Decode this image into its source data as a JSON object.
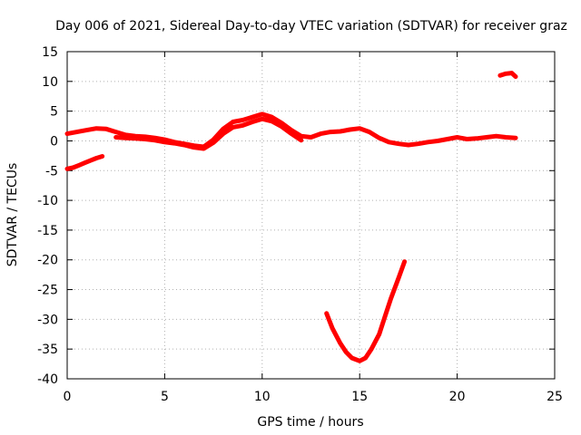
{
  "chart_data": {
    "type": "line",
    "title": "Day 006 of 2021, Sidereal Day-to-day VTEC variation (SDTVAR) for receiver graz",
    "xlabel": "GPS time / hours",
    "ylabel": "SDTVAR / TECUs",
    "xlim": [
      0,
      25
    ],
    "ylim": [
      -40,
      15
    ],
    "xticks": [
      0,
      5,
      10,
      15,
      20,
      25
    ],
    "yticks": [
      15,
      10,
      5,
      0,
      -5,
      -10,
      -15,
      -20,
      -25,
      -30,
      -35,
      -40
    ],
    "grid": true,
    "series_color": "#ff0000",
    "series": [
      {
        "name": "segment-main",
        "x": [
          0,
          0.5,
          1,
          1.5,
          2,
          2.5,
          3,
          3.5,
          4,
          4.5,
          5,
          5.5,
          6,
          6.5,
          7,
          7.5,
          8,
          8.5,
          9,
          9.5,
          10,
          10.5,
          11,
          11.5,
          12,
          12.5,
          13,
          13.5,
          14,
          14.5,
          15,
          15.5,
          16,
          16.5,
          17,
          17.5,
          18,
          18.5,
          19,
          19.5,
          20,
          20.5,
          21,
          21.5,
          22,
          22.5,
          23
        ],
        "y": [
          1.2,
          1.5,
          1.8,
          2.1,
          2.0,
          1.5,
          1.0,
          0.8,
          0.7,
          0.5,
          0.2,
          -0.2,
          -0.5,
          -0.8,
          -1.0,
          0.2,
          2.0,
          3.2,
          3.5,
          4.0,
          4.5,
          4.0,
          3.0,
          1.8,
          0.8,
          0.6,
          1.2,
          1.5,
          1.6,
          1.9,
          2.1,
          1.5,
          0.5,
          -0.2,
          -0.5,
          -0.7,
          -0.5,
          -0.2,
          0.0,
          0.3,
          0.6,
          0.3,
          0.4,
          0.6,
          0.8,
          0.6,
          0.5
        ]
      },
      {
        "name": "segment-main-lower",
        "x": [
          2.5,
          3,
          3.5,
          4,
          4.5,
          5,
          5.5,
          6,
          6.5,
          7,
          7.5,
          8,
          8.5,
          9,
          9.5,
          10,
          10.5,
          11,
          11.5,
          12
        ],
        "y": [
          0.6,
          0.5,
          0.4,
          0.3,
          0.1,
          -0.2,
          -0.4,
          -0.7,
          -1.1,
          -1.3,
          -0.3,
          1.2,
          2.3,
          2.6,
          3.2,
          3.7,
          3.3,
          2.4,
          1.2,
          0.1
        ]
      },
      {
        "name": "segment-early-negative",
        "x": [
          0,
          0.3,
          0.6,
          0.9,
          1.2,
          1.5,
          1.8
        ],
        "y": [
          -4.7,
          -4.5,
          -4.1,
          -3.7,
          -3.3,
          -2.9,
          -2.6
        ]
      },
      {
        "name": "segment-deep-dip",
        "x": [
          13.3,
          13.6,
          14,
          14.3,
          14.6,
          15,
          15.3,
          15.6,
          16,
          16.3,
          16.6,
          17,
          17.3
        ],
        "y": [
          -29,
          -31.5,
          -34,
          -35.5,
          -36.5,
          -37,
          -36.5,
          -35,
          -32.5,
          -29.5,
          -26.5,
          -23,
          -20.3
        ]
      },
      {
        "name": "segment-late-high",
        "x": [
          22.2,
          22.5,
          22.8,
          23
        ],
        "y": [
          11.0,
          11.3,
          11.4,
          10.8
        ]
      }
    ]
  }
}
